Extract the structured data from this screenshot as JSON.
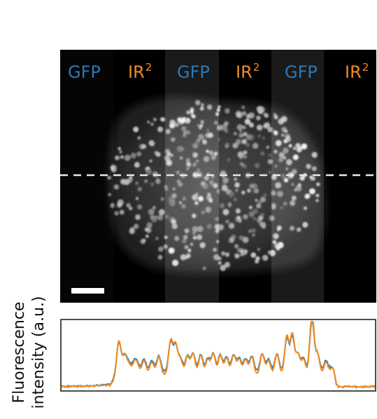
{
  "panel": {
    "channels": [
      {
        "label": "GFP",
        "sup": ""
      },
      {
        "label": "IR",
        "sup": "2"
      },
      {
        "label": "GFP",
        "sup": ""
      },
      {
        "label": "IR",
        "sup": "2"
      },
      {
        "label": "GFP",
        "sup": ""
      },
      {
        "label": "IR",
        "sup": "2"
      }
    ],
    "colors": {
      "gfp": "#2a78b8",
      "ir2": "#f08a24"
    }
  },
  "plot": {
    "ylabel_line1": "Fluorescence",
    "ylabel_line2": "intensity (a.u.)",
    "series_colors": {
      "gfp": "#2f7bb8",
      "ir2": "#f28a1e"
    }
  }
}
